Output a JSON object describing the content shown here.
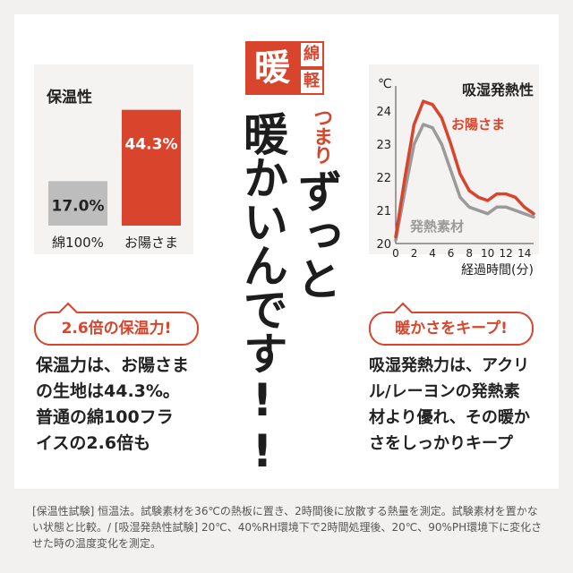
{
  "badge": {
    "main": "暖",
    "sub1": "綿",
    "sub2": "軽"
  },
  "headline": {
    "tsumari": "つまり",
    "line1": "暖かいんです!!",
    "line2": "ずっと"
  },
  "left_callout": "2.6倍の保温力!",
  "left_text": "保温力は、お陽さま\nの生地は44.3%。\n普通の綿100フラ\nイスの2.6倍も",
  "right_callout": "暖かさをキープ!",
  "right_text": "吸湿発熱力は、アクリ\nル/レーヨンの発熱素\n材より優れ、その暖か\nさをしっかりキープ",
  "footnote": "[保温性試験] 恒温法。試験素材を36℃の熱板に置き、2時間後に放散する熱量を測定。試験素材を置かない状態と比較。/ [吸湿発熱性試験] 20℃、40%RH環境下で2時間処理後、20℃、90%PH環境下に変化させた時の温度変化を測定。",
  "colors": {
    "accent": "#d8452c",
    "gray_bar": "#bdbdbd",
    "gray_line": "#9a9a9a",
    "dark": "#1d1d1d"
  },
  "chart_data": [
    {
      "type": "bar",
      "title": "保温性",
      "categories": [
        "綿100%",
        "お陽さま"
      ],
      "values": [
        17.0,
        44.3
      ],
      "value_labels": [
        "17.0%",
        "44.3%"
      ],
      "colors": [
        "#bdbdbd",
        "#d8452c"
      ],
      "ylim": [
        0,
        50
      ]
    },
    {
      "type": "line",
      "title": "吸湿発熱性",
      "ylabel": "℃",
      "xlabel": "経過時間(分)",
      "xticks": [
        0,
        2,
        4,
        6,
        8,
        10,
        12,
        14
      ],
      "yticks": [
        20,
        21,
        22,
        23,
        24
      ],
      "xlim": [
        0,
        15
      ],
      "ylim": [
        20,
        24.6
      ],
      "series": [
        {
          "name": "お陽さま",
          "color": "#d8452c",
          "x": [
            0,
            1,
            2,
            3,
            4,
            5,
            6,
            7,
            8,
            9,
            10,
            11,
            12,
            13,
            14,
            15
          ],
          "values": [
            20.2,
            22.0,
            23.6,
            24.3,
            24.2,
            23.8,
            23.0,
            22.1,
            21.6,
            21.4,
            21.3,
            21.5,
            21.5,
            21.4,
            21.1,
            20.9
          ]
        },
        {
          "name": "発熱素材",
          "color": "#9a9a9a",
          "x": [
            0,
            1,
            2,
            3,
            4,
            5,
            6,
            7,
            8,
            9,
            10,
            11,
            12,
            13,
            14,
            15
          ],
          "values": [
            20.1,
            21.6,
            23.0,
            23.6,
            23.5,
            23.0,
            22.2,
            21.4,
            21.1,
            21.0,
            20.9,
            21.1,
            21.1,
            21.0,
            20.9,
            20.8
          ]
        }
      ]
    }
  ]
}
